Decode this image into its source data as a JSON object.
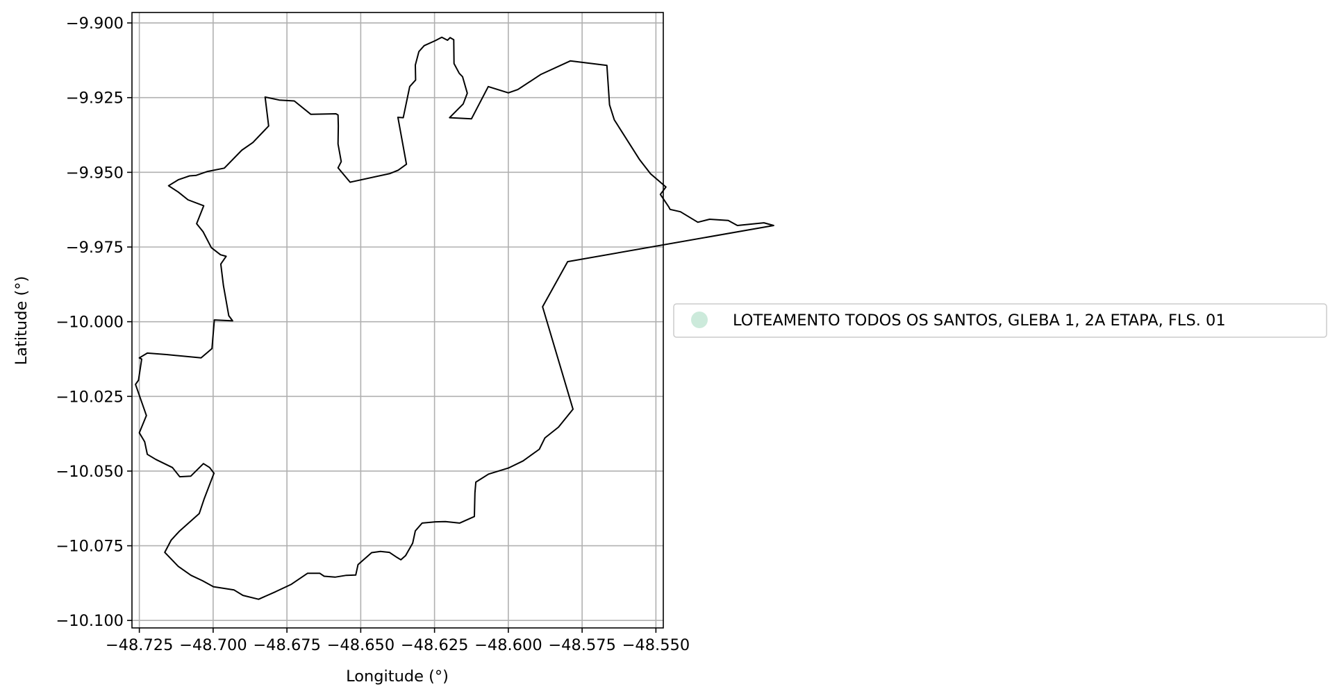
{
  "chart_data": {
    "type": "map",
    "xlabel": "Longitude (°)",
    "ylabel": "Latitude (°)",
    "xlim": [
      -48.7275,
      -48.5475
    ],
    "ylim": [
      -10.1025,
      -9.8965
    ],
    "grid": true,
    "xticks": [
      -48.725,
      -48.7,
      -48.675,
      -48.65,
      -48.625,
      -48.6,
      -48.575,
      -48.55
    ],
    "xtick_labels": [
      "−48.725",
      "−48.700",
      "−48.675",
      "−48.650",
      "−48.625",
      "−48.600",
      "−48.575",
      "−48.550"
    ],
    "yticks": [
      -9.9,
      -9.925,
      -9.95,
      -9.975,
      -10.0,
      -10.025,
      -10.05,
      -10.075,
      -10.1
    ],
    "ytick_labels": [
      "−9.900",
      "−9.925",
      "−9.950",
      "−9.975",
      "−10.000",
      "−10.025",
      "−10.050",
      "−10.075",
      "−10.100"
    ],
    "legend": {
      "placement": "center-right outside",
      "entries": [
        {
          "label": "LOTEAMENTO TODOS OS SANTOS, GLEBA 1, 2A ETAPA, FLS. 01",
          "color": "#cceadb"
        }
      ]
    },
    "polygon": {
      "name": "LOTEAMENTO TODOS OS SANTOS, GLEBA 1, 2A ETAPA, FLS. 01",
      "fill": "none",
      "stroke": "#000000",
      "coords": [
        [
          -48.6824,
          -9.9248
        ],
        [
          -48.6776,
          -9.9258
        ],
        [
          -48.6725,
          -9.9261
        ],
        [
          -48.6669,
          -9.9306
        ],
        [
          -48.6584,
          -9.9304
        ],
        [
          -48.6577,
          -9.9308
        ],
        [
          -48.6576,
          -9.9345
        ],
        [
          -48.6577,
          -9.9405
        ],
        [
          -48.6566,
          -9.9464
        ],
        [
          -48.6577,
          -9.9485
        ],
        [
          -48.6536,
          -9.9533
        ],
        [
          -48.6401,
          -9.9504
        ],
        [
          -48.6373,
          -9.9493
        ],
        [
          -48.6345,
          -9.9473
        ],
        [
          -48.6374,
          -9.9316
        ],
        [
          -48.6356,
          -9.9317
        ],
        [
          -48.6334,
          -9.9213
        ],
        [
          -48.6314,
          -9.9191
        ],
        [
          -48.6315,
          -9.9141
        ],
        [
          -48.6303,
          -9.9096
        ],
        [
          -48.6285,
          -9.9076
        ],
        [
          -48.6247,
          -9.9059
        ],
        [
          -48.6225,
          -9.9048
        ],
        [
          -48.6206,
          -9.9058
        ],
        [
          -48.6197,
          -9.9049
        ],
        [
          -48.6185,
          -9.9056
        ],
        [
          -48.6184,
          -9.9136
        ],
        [
          -48.6166,
          -9.9169
        ],
        [
          -48.6155,
          -9.918
        ],
        [
          -48.6139,
          -9.9235
        ],
        [
          -48.6153,
          -9.9271
        ],
        [
          -48.6199,
          -9.9317
        ],
        [
          -48.6125,
          -9.9321
        ],
        [
          -48.6068,
          -9.9213
        ],
        [
          -48.6,
          -9.9234
        ],
        [
          -48.5968,
          -9.9223
        ],
        [
          -48.5889,
          -9.9172
        ],
        [
          -48.579,
          -9.9127
        ],
        [
          -48.5666,
          -9.9142
        ],
        [
          -48.5657,
          -9.9274
        ],
        [
          -48.5641,
          -9.9324
        ],
        [
          -48.5555,
          -9.9458
        ],
        [
          -48.5518,
          -9.9505
        ],
        [
          -48.5466,
          -9.9549
        ],
        [
          -48.5485,
          -9.9574
        ],
        [
          -48.5457,
          -9.9615
        ],
        [
          -48.5452,
          -9.9624
        ],
        [
          -48.5417,
          -9.9632
        ],
        [
          -48.5358,
          -9.9667
        ],
        [
          -48.5318,
          -9.9657
        ],
        [
          -48.5255,
          -9.9661
        ],
        [
          -48.5224,
          -9.9678
        ],
        [
          -48.5134,
          -9.9669
        ],
        [
          -48.5101,
          -9.9678
        ],
        [
          -48.5799,
          -9.9799
        ],
        [
          -48.5884,
          -9.995
        ],
        [
          -48.5781,
          -10.0293
        ],
        [
          -48.583,
          -10.0353
        ],
        [
          -48.5876,
          -10.0389
        ],
        [
          -48.5895,
          -10.0427
        ],
        [
          -48.595,
          -10.0466
        ],
        [
          -48.6,
          -10.049
        ],
        [
          -48.6067,
          -10.051
        ],
        [
          -48.611,
          -10.0537
        ],
        [
          -48.6113,
          -10.0573
        ],
        [
          -48.6115,
          -10.0652
        ],
        [
          -48.6165,
          -10.0674
        ],
        [
          -48.6213,
          -10.0669
        ],
        [
          -48.6247,
          -10.067
        ],
        [
          -48.6292,
          -10.0674
        ],
        [
          -48.6315,
          -10.07
        ],
        [
          -48.6324,
          -10.0741
        ],
        [
          -48.6348,
          -10.0783
        ],
        [
          -48.6364,
          -10.0797
        ],
        [
          -48.6377,
          -10.0789
        ],
        [
          -48.6403,
          -10.0772
        ],
        [
          -48.6433,
          -10.0769
        ],
        [
          -48.6463,
          -10.0773
        ],
        [
          -48.6509,
          -10.0813
        ],
        [
          -48.6517,
          -10.0848
        ],
        [
          -48.6549,
          -10.0849
        ],
        [
          -48.6587,
          -10.0855
        ],
        [
          -48.6624,
          -10.0852
        ],
        [
          -48.6639,
          -10.0842
        ],
        [
          -48.668,
          -10.0842
        ],
        [
          -48.6735,
          -10.0879
        ],
        [
          -48.6789,
          -10.0904
        ],
        [
          -48.6846,
          -10.0929
        ],
        [
          -48.6899,
          -10.0916
        ],
        [
          -48.6929,
          -10.0898
        ],
        [
          -48.6999,
          -10.0887
        ],
        [
          -48.7036,
          -10.0867
        ],
        [
          -48.7075,
          -10.0849
        ],
        [
          -48.7118,
          -10.0819
        ],
        [
          -48.7164,
          -10.0772
        ],
        [
          -48.7142,
          -10.0731
        ],
        [
          -48.7115,
          -10.0702
        ],
        [
          -48.7047,
          -10.0642
        ],
        [
          -48.703,
          -10.0592
        ],
        [
          -48.6997,
          -10.0507
        ],
        [
          -48.7012,
          -10.0488
        ],
        [
          -48.7033,
          -10.0475
        ],
        [
          -48.7076,
          -10.0517
        ],
        [
          -48.7113,
          -10.0519
        ],
        [
          -48.7138,
          -10.0488
        ],
        [
          -48.7194,
          -10.0461
        ],
        [
          -48.7223,
          -10.0444
        ],
        [
          -48.7232,
          -10.0402
        ],
        [
          -48.725,
          -10.0372
        ],
        [
          -48.7226,
          -10.0314
        ],
        [
          -48.7263,
          -10.021
        ],
        [
          -48.7253,
          -10.0196
        ],
        [
          -48.7242,
          -10.0125
        ],
        [
          -48.725,
          -10.0121
        ],
        [
          -48.7223,
          -10.0105
        ],
        [
          -48.7158,
          -10.011
        ],
        [
          -48.7041,
          -10.0121
        ],
        [
          -48.7004,
          -10.009
        ],
        [
          -48.6996,
          -9.9994
        ],
        [
          -48.6934,
          -9.9997
        ],
        [
          -48.6947,
          -9.998
        ],
        [
          -48.6965,
          -9.9879
        ],
        [
          -48.6974,
          -9.9807
        ],
        [
          -48.6956,
          -9.9781
        ],
        [
          -48.6975,
          -9.9776
        ],
        [
          -48.7006,
          -9.9752
        ],
        [
          -48.7034,
          -9.9699
        ],
        [
          -48.7056,
          -9.9672
        ],
        [
          -48.7032,
          -9.9612
        ],
        [
          -48.7085,
          -9.9592
        ],
        [
          -48.7118,
          -9.9566
        ],
        [
          -48.7151,
          -9.9545
        ],
        [
          -48.7118,
          -9.9525
        ],
        [
          -48.708,
          -9.9512
        ],
        [
          -48.7057,
          -9.951
        ],
        [
          -48.7019,
          -9.9497
        ],
        [
          -48.6962,
          -9.9486
        ],
        [
          -48.6903,
          -9.9426
        ],
        [
          -48.6865,
          -9.94
        ],
        [
          -48.6812,
          -9.9345
        ],
        [
          -48.6824,
          -9.9248
        ]
      ]
    }
  }
}
